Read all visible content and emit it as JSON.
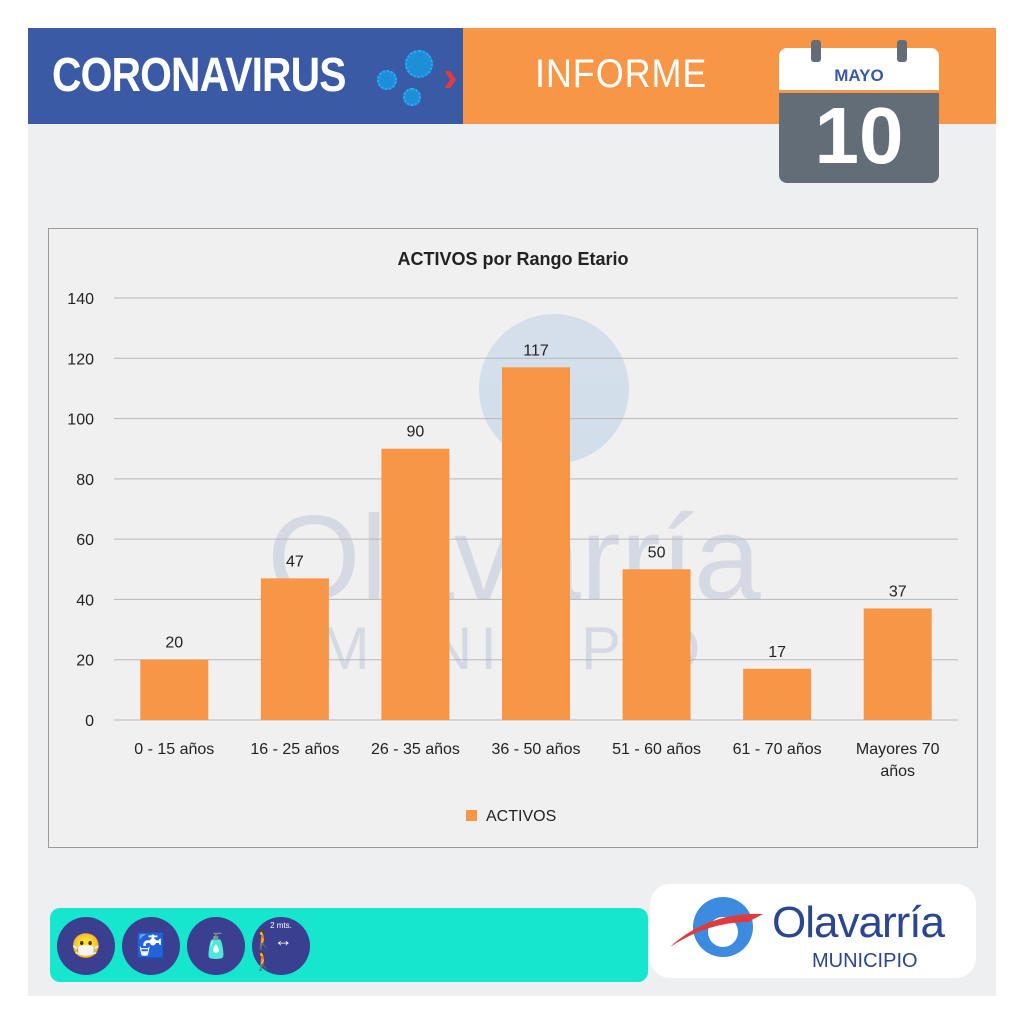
{
  "header": {
    "title": "CORONAVIRUS",
    "subtitle": "INFORME",
    "calendar": {
      "month": "MAYO",
      "day": "10"
    },
    "colors": {
      "blue": "#3b5aa6",
      "orange": "#f69646"
    }
  },
  "chart_data": {
    "type": "bar",
    "title": "ACTIVOS por Rango Etario",
    "categories": [
      "0 - 15 años",
      "16 - 25 años",
      "26 - 35 años",
      "36 - 50 años",
      "51 - 60 años",
      "61 - 70 años",
      "Mayores 70 años"
    ],
    "series": [
      {
        "name": "ACTIVOS",
        "values": [
          20,
          47,
          90,
          117,
          50,
          17,
          37
        ],
        "color": "#f69646"
      }
    ],
    "ylim": [
      0,
      140
    ],
    "yticks": [
      0,
      20,
      40,
      60,
      80,
      100,
      120,
      140
    ],
    "grid": true,
    "legend": "bottom",
    "data_labels": true
  },
  "watermark": {
    "name": "Olavarría",
    "sub": "MUNICIPIO"
  },
  "footer": {
    "icons": [
      "mask-icon",
      "handwash-icon",
      "sanitizer-icon",
      "distance-icon"
    ],
    "distance_label": "2 mts.",
    "logo": {
      "name": "Olavarría",
      "sub": "MUNICIPIO"
    }
  }
}
